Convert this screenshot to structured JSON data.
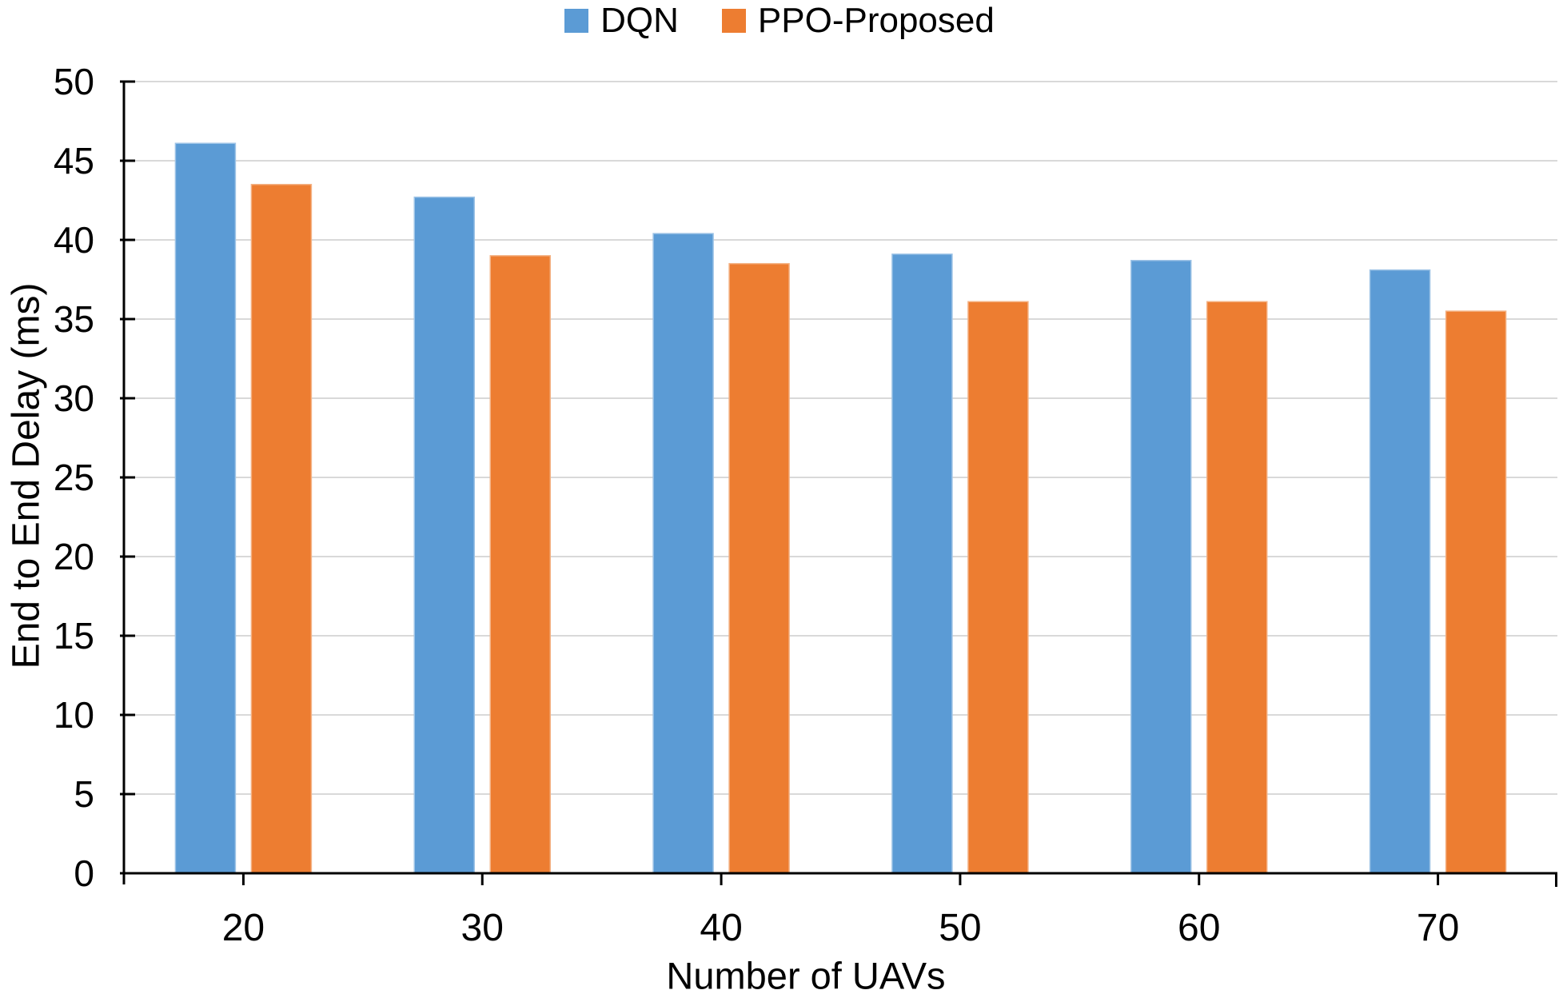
{
  "chart_data": {
    "type": "bar",
    "title": "",
    "categories": [
      "20",
      "30",
      "40",
      "50",
      "60",
      "70"
    ],
    "series": [
      {
        "name": "DQN",
        "color": "#5B9BD5",
        "edge_color": "#9DC3E6",
        "values": [
          46.1,
          42.7,
          40.4,
          39.1,
          38.7,
          38.1
        ]
      },
      {
        "name": "PPO-Proposed",
        "color": "#ED7D31",
        "edge_color": "#F4B183",
        "values": [
          43.5,
          39.0,
          38.5,
          36.1,
          36.1,
          35.5
        ]
      }
    ],
    "xlabel": "Number of UAVs",
    "ylabel": "End to End Delay (ms)",
    "ylim": [
      0,
      50
    ],
    "ytick_step": 5,
    "yticks": [
      0,
      5,
      10,
      15,
      20,
      25,
      30,
      35,
      40,
      45,
      50
    ],
    "grid": true,
    "legend_position": "top-center",
    "gridline_color": "#D9D9D9",
    "axis_color": "#000000",
    "text_color": "#000000",
    "background_color": "#FFFFFF"
  }
}
